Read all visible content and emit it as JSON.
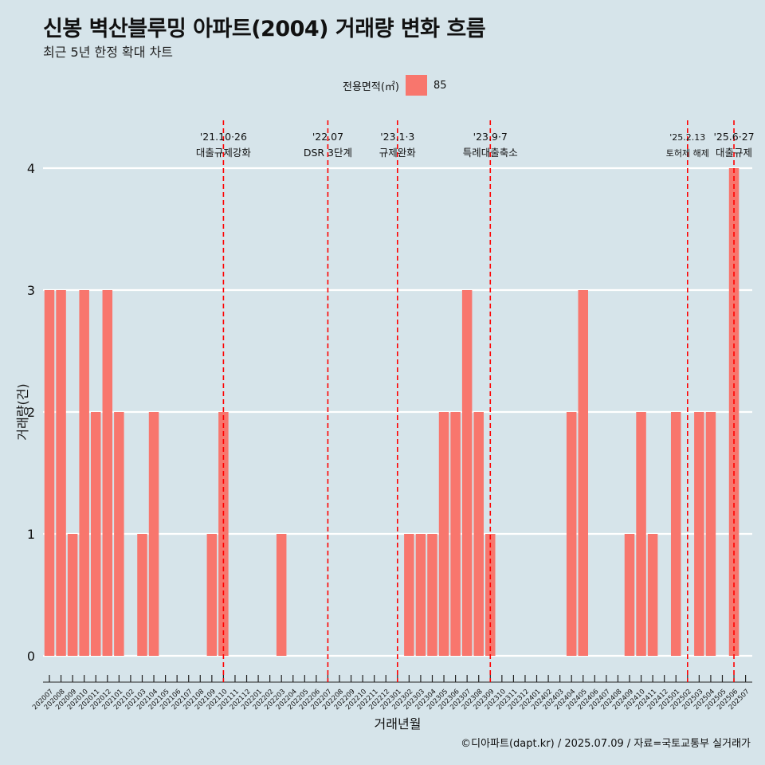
{
  "title": "신봉 벽산블루밍 아파트(2004) 거래량 변화 흐름",
  "subtitle": "최근 5년 한정 확대 차트",
  "legend": {
    "title": "전용면적(㎡)",
    "label": "85",
    "color": "#f8766d"
  },
  "caption": "©디아파트(dapt.kr) / 2025.07.09 / 자료=국토교통부 실거래가",
  "chart_data": {
    "type": "bar",
    "xlabel": "거래년월",
    "ylabel": "거래량(건)",
    "ylim": [
      0,
      4
    ],
    "yticks": [
      0,
      1,
      2,
      3,
      4
    ],
    "grid": true,
    "legend_position": "top",
    "bar_color": "#f8766d",
    "categories": [
      "202007",
      "202008",
      "202009",
      "202010",
      "202011",
      "202012",
      "202101",
      "202102",
      "202103",
      "202104",
      "202105",
      "202106",
      "202107",
      "202108",
      "202109",
      "202110",
      "202111",
      "202112",
      "202201",
      "202202",
      "202203",
      "202204",
      "202205",
      "202206",
      "202207",
      "202208",
      "202209",
      "202210",
      "202211",
      "202212",
      "202301",
      "202302",
      "202303",
      "202304",
      "202305",
      "202306",
      "202307",
      "202308",
      "202309",
      "202310",
      "202311",
      "202312",
      "202401",
      "202402",
      "202403",
      "202404",
      "202405",
      "202406",
      "202407",
      "202408",
      "202409",
      "202410",
      "202411",
      "202412",
      "202501",
      "202502",
      "202503",
      "202504",
      "202505",
      "202506",
      "202507"
    ],
    "series": [
      {
        "name": "85",
        "values": [
          3,
          3,
          1,
          3,
          2,
          3,
          2,
          0,
          1,
          2,
          0,
          0,
          0,
          0,
          1,
          2,
          0,
          0,
          0,
          0,
          1,
          0,
          0,
          0,
          0,
          0,
          0,
          0,
          0,
          0,
          0,
          1,
          1,
          1,
          2,
          2,
          3,
          2,
          1,
          0,
          0,
          0,
          0,
          0,
          0,
          2,
          3,
          0,
          0,
          0,
          1,
          2,
          1,
          0,
          2,
          0,
          2,
          2,
          0,
          4,
          0
        ]
      }
    ],
    "annotations": [
      {
        "date": "'21.10·26",
        "text": "대출규제강화",
        "month": "202110"
      },
      {
        "date": "'22.07",
        "text": "DSR 3단계",
        "month": "202207"
      },
      {
        "date": "'23.1·3",
        "text": "규제완화",
        "month": "202301"
      },
      {
        "date": "'23.9·7",
        "text": "특례대출축소",
        "month": "202309"
      },
      {
        "date": "'25.2.13",
        "text": "토허제 해제",
        "month": "202502"
      },
      {
        "date": "'25.6·27",
        "text": "대출규제",
        "month": "202506"
      }
    ],
    "annotation_color": "#ff0000"
  }
}
